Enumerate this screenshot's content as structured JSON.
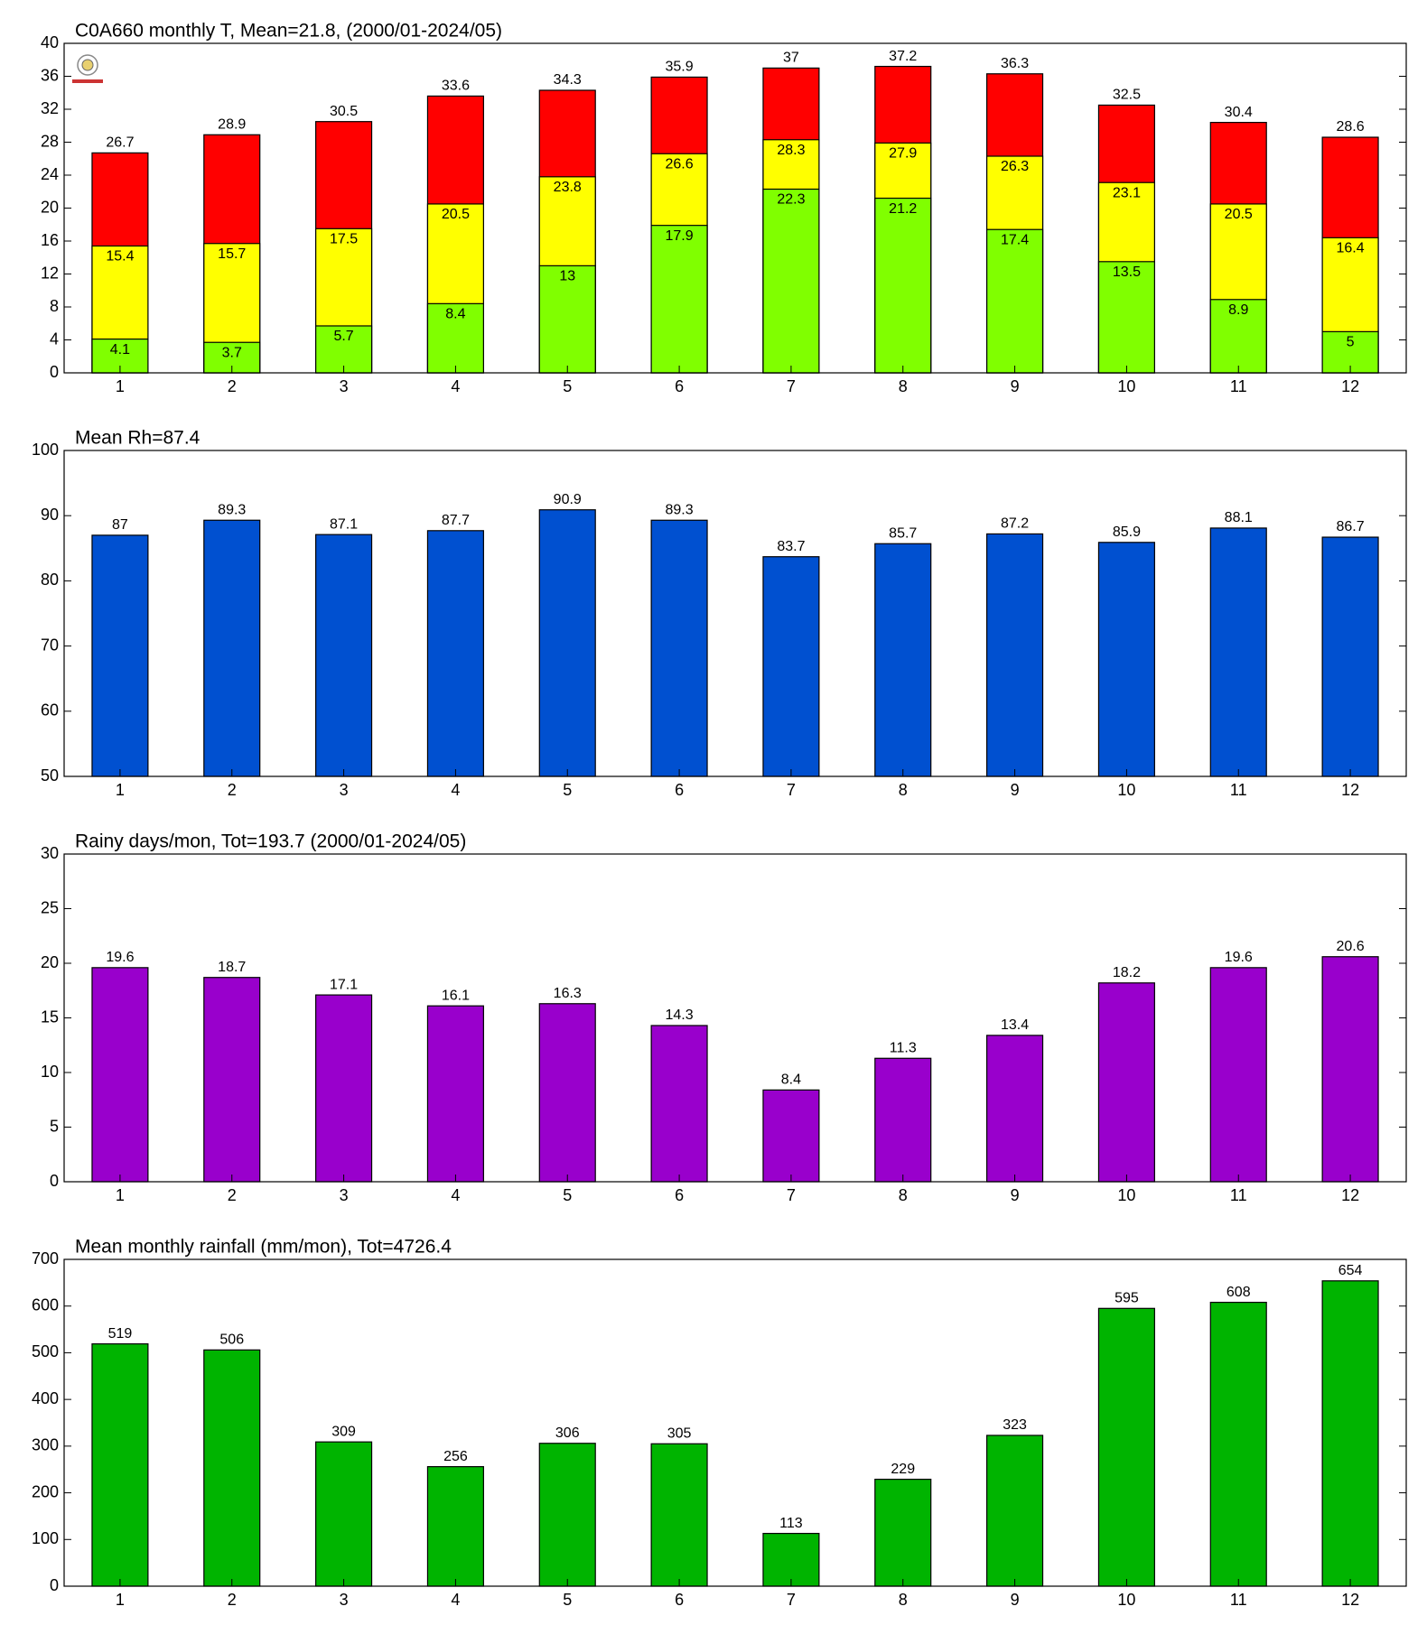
{
  "chart_data": [
    {
      "type": "bar",
      "title": "C0A660 monthly T, Mean=21.8, (2000/01-2024/05)",
      "categories": [
        "1",
        "2",
        "3",
        "4",
        "5",
        "6",
        "7",
        "8",
        "9",
        "10",
        "11",
        "12"
      ],
      "series": [
        {
          "color": "#ff0000",
          "values": [
            26.7,
            28.9,
            30.5,
            33.6,
            34.3,
            35.9,
            37,
            37.2,
            36.3,
            32.5,
            30.4,
            28.6
          ]
        },
        {
          "color": "#ffff00",
          "values": [
            15.4,
            15.7,
            17.5,
            20.5,
            23.8,
            26.6,
            28.3,
            27.9,
            26.3,
            23.1,
            20.5,
            16.4
          ]
        },
        {
          "color": "#80ff00",
          "values": [
            4.1,
            3.7,
            5.7,
            8.4,
            13,
            17.9,
            22.3,
            21.2,
            17.4,
            13.5,
            8.9,
            5
          ]
        }
      ],
      "ylim": [
        0,
        40
      ],
      "yticks": [
        0,
        4,
        8,
        12,
        16,
        20,
        24,
        28,
        32,
        36,
        40
      ]
    },
    {
      "type": "bar",
      "title": "Mean Rh=87.4",
      "categories": [
        "1",
        "2",
        "3",
        "4",
        "5",
        "6",
        "7",
        "8",
        "9",
        "10",
        "11",
        "12"
      ],
      "series": [
        {
          "color": "#0050d0",
          "values": [
            87,
            89.3,
            87.1,
            87.7,
            90.9,
            89.3,
            83.7,
            85.7,
            87.2,
            85.9,
            88.1,
            86.7
          ]
        }
      ],
      "ylim": [
        50,
        100
      ],
      "yticks": [
        50,
        60,
        70,
        80,
        90,
        100
      ]
    },
    {
      "type": "bar",
      "title": "Rainy days/mon, Tot=193.7 (2000/01-2024/05)",
      "categories": [
        "1",
        "2",
        "3",
        "4",
        "5",
        "6",
        "7",
        "8",
        "9",
        "10",
        "11",
        "12"
      ],
      "series": [
        {
          "color": "#9900cc",
          "values": [
            19.6,
            18.7,
            17.1,
            16.1,
            16.3,
            14.3,
            8.4,
            11.3,
            13.4,
            18.2,
            19.6,
            20.6
          ]
        }
      ],
      "ylim": [
        0,
        30
      ],
      "yticks": [
        0,
        5,
        10,
        15,
        20,
        25,
        30
      ]
    },
    {
      "type": "bar",
      "title": "Mean monthly rainfall (mm/mon), Tot=4726.4",
      "categories": [
        "1",
        "2",
        "3",
        "4",
        "5",
        "6",
        "7",
        "8",
        "9",
        "10",
        "11",
        "12"
      ],
      "series": [
        {
          "color": "#00b400",
          "values": [
            519,
            506,
            309,
            256,
            306,
            305,
            113,
            229,
            323,
            595,
            608,
            654
          ]
        }
      ],
      "ylim": [
        0,
        700
      ],
      "yticks": [
        0,
        100,
        200,
        300,
        400,
        500,
        600,
        700
      ]
    }
  ]
}
